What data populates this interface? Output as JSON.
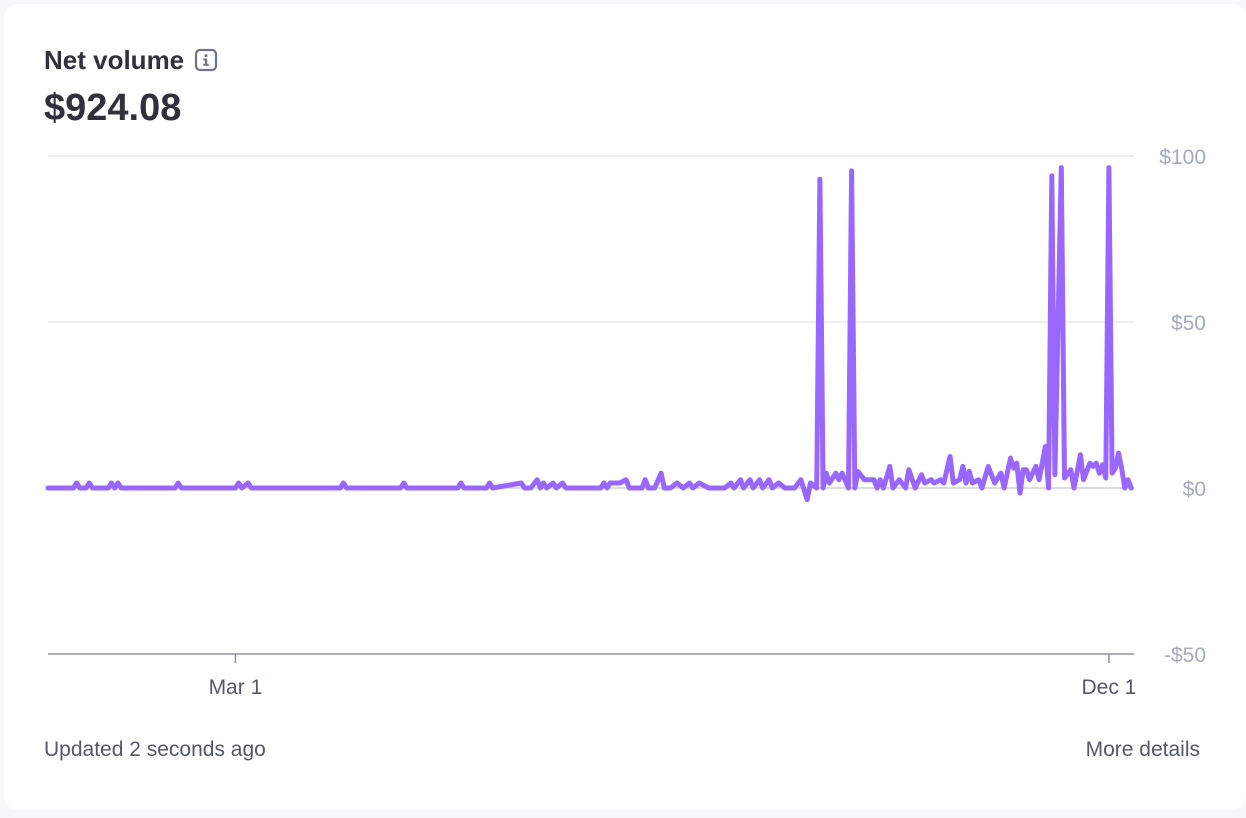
{
  "header": {
    "title": "Net volume",
    "info_icon": "info-icon",
    "value": "$924.08"
  },
  "footer": {
    "updated": "Updated 2 seconds ago",
    "more_details": "More details"
  },
  "colors": {
    "line": "#9966ff",
    "grid": "#e3e4ea",
    "axis": "#8f96a3",
    "tick_text": "#a3acba"
  },
  "chart_data": {
    "type": "line",
    "ylim": [
      -50,
      100
    ],
    "y_ticks": [
      {
        "value": 100,
        "label": "$100"
      },
      {
        "value": 50,
        "label": "$50"
      },
      {
        "value": 0,
        "label": "$0"
      },
      {
        "value": -50,
        "label": "-$50"
      }
    ],
    "x_ticks": [
      {
        "date": "2023-03-01",
        "label": "Mar 1"
      },
      {
        "date": "2023-12-01",
        "label": "Dec 1"
      }
    ],
    "x_range": [
      "2023-01-01",
      "2023-12-07"
    ],
    "series": [
      {
        "points": [
          [
            "2023-01-01",
            0
          ],
          [
            "2023-01-05",
            0
          ],
          [
            "2023-01-09",
            0
          ],
          [
            "2023-01-10",
            1.5
          ],
          [
            "2023-01-11",
            0
          ],
          [
            "2023-01-13",
            0
          ],
          [
            "2023-01-14",
            1.5
          ],
          [
            "2023-01-15",
            0
          ],
          [
            "2023-01-20",
            0
          ],
          [
            "2023-01-21",
            1.5
          ],
          [
            "2023-01-22",
            0
          ],
          [
            "2023-01-23",
            1.5
          ],
          [
            "2023-01-24",
            0
          ],
          [
            "2023-02-10",
            0
          ],
          [
            "2023-02-11",
            1.5
          ],
          [
            "2023-02-12",
            0
          ],
          [
            "2023-03-01",
            0
          ],
          [
            "2023-03-02",
            1.5
          ],
          [
            "2023-03-03",
            0
          ],
          [
            "2023-03-05",
            1.5
          ],
          [
            "2023-03-06",
            0
          ],
          [
            "2023-04-03",
            0
          ],
          [
            "2023-04-04",
            1.5
          ],
          [
            "2023-04-05",
            0
          ],
          [
            "2023-04-22",
            0
          ],
          [
            "2023-04-23",
            1.5
          ],
          [
            "2023-04-24",
            0
          ],
          [
            "2023-05-10",
            0
          ],
          [
            "2023-05-11",
            1.5
          ],
          [
            "2023-05-12",
            0
          ],
          [
            "2023-05-19",
            0
          ],
          [
            "2023-05-20",
            1.5
          ],
          [
            "2023-05-21",
            0
          ],
          [
            "2023-05-30",
            1.5
          ],
          [
            "2023-05-31",
            0
          ],
          [
            "2023-06-02",
            0
          ],
          [
            "2023-06-04",
            2.5
          ],
          [
            "2023-06-05",
            0
          ],
          [
            "2023-06-06",
            1.5
          ],
          [
            "2023-06-07",
            0
          ],
          [
            "2023-06-09",
            1.5
          ],
          [
            "2023-06-10",
            0
          ],
          [
            "2023-06-12",
            1.5
          ],
          [
            "2023-06-13",
            0
          ],
          [
            "2023-06-24",
            0
          ],
          [
            "2023-06-25",
            1.5
          ],
          [
            "2023-06-26",
            0
          ],
          [
            "2023-06-27",
            1.5
          ],
          [
            "2023-06-30",
            1.5
          ],
          [
            "2023-07-02",
            2.5
          ],
          [
            "2023-07-03",
            0
          ],
          [
            "2023-07-07",
            0
          ],
          [
            "2023-07-08",
            2.5
          ],
          [
            "2023-07-09",
            0
          ],
          [
            "2023-07-11",
            0
          ],
          [
            "2023-07-13",
            4.5
          ],
          [
            "2023-07-14",
            0
          ],
          [
            "2023-07-16",
            0
          ],
          [
            "2023-07-18",
            1.5
          ],
          [
            "2023-07-20",
            0
          ],
          [
            "2023-07-22",
            1.5
          ],
          [
            "2023-07-23",
            0
          ],
          [
            "2023-07-25",
            1.5
          ],
          [
            "2023-07-28",
            0
          ],
          [
            "2023-08-02",
            0
          ],
          [
            "2023-08-04",
            1.5
          ],
          [
            "2023-08-05",
            0
          ],
          [
            "2023-08-07",
            2.5
          ],
          [
            "2023-08-08",
            0
          ],
          [
            "2023-08-10",
            2.5
          ],
          [
            "2023-08-11",
            0
          ],
          [
            "2023-08-13",
            2.5
          ],
          [
            "2023-08-14",
            0
          ],
          [
            "2023-08-16",
            2.5
          ],
          [
            "2023-08-17",
            0
          ],
          [
            "2023-08-19",
            1.5
          ],
          [
            "2023-08-21",
            0
          ],
          [
            "2023-08-24",
            0
          ],
          [
            "2023-08-26",
            2.5
          ],
          [
            "2023-08-28",
            -3.5
          ],
          [
            "2023-08-29",
            1.5
          ],
          [
            "2023-08-31",
            0
          ],
          [
            "2023-09-01",
            93
          ],
          [
            "2023-09-02",
            0
          ],
          [
            "2023-09-03",
            4.5
          ],
          [
            "2023-09-04",
            1.5
          ],
          [
            "2023-09-06",
            4.5
          ],
          [
            "2023-09-07",
            2.5
          ],
          [
            "2023-09-08",
            4.5
          ],
          [
            "2023-09-10",
            0
          ],
          [
            "2023-09-11",
            95.5
          ],
          [
            "2023-09-12",
            0
          ],
          [
            "2023-09-13",
            5
          ],
          [
            "2023-09-15",
            2.5
          ],
          [
            "2023-09-18",
            2.5
          ],
          [
            "2023-09-19",
            0
          ],
          [
            "2023-09-20",
            2.5
          ],
          [
            "2023-09-21",
            0
          ],
          [
            "2023-09-23",
            6.5
          ],
          [
            "2023-09-24",
            0
          ],
          [
            "2023-09-26",
            2.5
          ],
          [
            "2023-09-28",
            0
          ],
          [
            "2023-09-29",
            5.5
          ],
          [
            "2023-10-01",
            0
          ],
          [
            "2023-10-03",
            4
          ],
          [
            "2023-10-04",
            1.5
          ],
          [
            "2023-10-06",
            2.5
          ],
          [
            "2023-10-07",
            1.5
          ],
          [
            "2023-10-09",
            2.5
          ],
          [
            "2023-10-10",
            1.5
          ],
          [
            "2023-10-12",
            9.5
          ],
          [
            "2023-10-13",
            1.5
          ],
          [
            "2023-10-15",
            2.5
          ],
          [
            "2023-10-16",
            6.5
          ],
          [
            "2023-10-17",
            1.5
          ],
          [
            "2023-10-18",
            5
          ],
          [
            "2023-10-19",
            1.5
          ],
          [
            "2023-10-21",
            2.5
          ],
          [
            "2023-10-22",
            0
          ],
          [
            "2023-10-24",
            6.5
          ],
          [
            "2023-10-26",
            1.5
          ],
          [
            "2023-10-28",
            4.5
          ],
          [
            "2023-10-29",
            0
          ],
          [
            "2023-10-31",
            9
          ],
          [
            "2023-11-01",
            6
          ],
          [
            "2023-11-02",
            7.5
          ],
          [
            "2023-11-03",
            -1.5
          ],
          [
            "2023-11-04",
            5.5
          ],
          [
            "2023-11-05",
            5.5
          ],
          [
            "2023-11-06",
            2.5
          ],
          [
            "2023-11-08",
            6.5
          ],
          [
            "2023-11-09",
            2.5
          ],
          [
            "2023-11-11",
            12.5
          ],
          [
            "2023-11-12",
            0
          ],
          [
            "2023-11-13",
            94
          ],
          [
            "2023-11-14",
            4
          ],
          [
            "2023-11-16",
            96.5
          ],
          [
            "2023-11-17",
            3
          ],
          [
            "2023-11-19",
            5.5
          ],
          [
            "2023-11-20",
            0
          ],
          [
            "2023-11-22",
            10
          ],
          [
            "2023-11-23",
            2.5
          ],
          [
            "2023-11-25",
            7.5
          ],
          [
            "2023-11-26",
            6.5
          ],
          [
            "2023-11-27",
            7.5
          ],
          [
            "2023-11-28",
            4.5
          ],
          [
            "2023-11-29",
            7
          ],
          [
            "2023-11-30",
            3
          ],
          [
            "2023-12-01",
            96.5
          ],
          [
            "2023-12-02",
            4.5
          ],
          [
            "2023-12-03",
            6
          ],
          [
            "2023-12-04",
            10.5
          ],
          [
            "2023-12-05",
            6
          ],
          [
            "2023-12-06",
            0
          ],
          [
            "2023-12-07",
            2.5
          ],
          [
            "2023-12-08",
            0
          ]
        ]
      }
    ]
  }
}
